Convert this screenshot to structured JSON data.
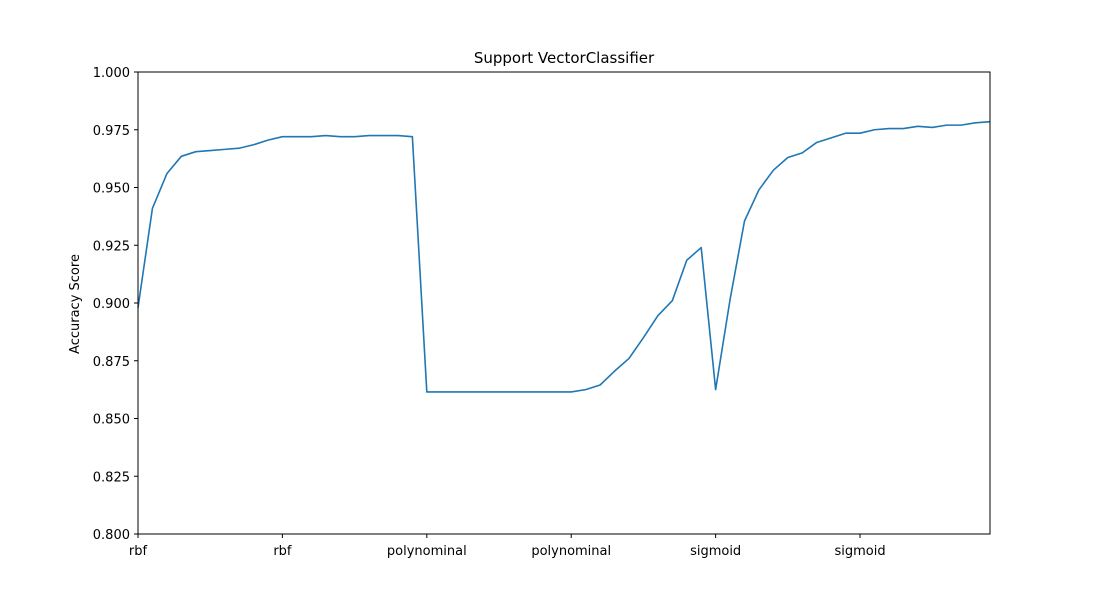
{
  "chart_data": {
    "type": "line",
    "title": "Support VectorClassifier",
    "xlabel": "",
    "ylabel": "Accuracy Score",
    "ylim": [
      0.8,
      1.0
    ],
    "yticks": [
      "0.800",
      "0.825",
      "0.850",
      "0.875",
      "0.900",
      "0.925",
      "0.950",
      "0.975",
      "1.000"
    ],
    "xticks": [
      {
        "x": 0,
        "label": "rbf"
      },
      {
        "x": 10,
        "label": "rbf"
      },
      {
        "x": 20,
        "label": "polynominal"
      },
      {
        "x": 30,
        "label": "polynominal"
      },
      {
        "x": 40,
        "label": "sigmoid"
      },
      {
        "x": 50,
        "label": "sigmoid"
      }
    ],
    "xlim": [
      0,
      59
    ],
    "grid": false,
    "color": "#1f77b4",
    "series": [
      {
        "values": [
          0.898,
          0.941,
          0.956,
          0.9635,
          0.9655,
          0.966,
          0.9665,
          0.967,
          0.9685,
          0.9705,
          0.972,
          0.972,
          0.972,
          0.9725,
          0.972,
          0.972,
          0.9725,
          0.9725,
          0.9725,
          0.972,
          0.8615,
          0.8615,
          0.8615,
          0.8615,
          0.8615,
          0.8615,
          0.8615,
          0.8615,
          0.8615,
          0.8615,
          0.8615,
          0.8625,
          0.8645,
          0.8705,
          0.876,
          0.885,
          0.8945,
          0.901,
          0.9185,
          0.924,
          0.8625,
          0.9015,
          0.9355,
          0.949,
          0.9575,
          0.963,
          0.965,
          0.9695,
          0.9715,
          0.9735,
          0.9735,
          0.975,
          0.9755,
          0.9755,
          0.9765,
          0.976,
          0.977,
          0.977,
          0.978,
          0.9785
        ]
      }
    ]
  }
}
